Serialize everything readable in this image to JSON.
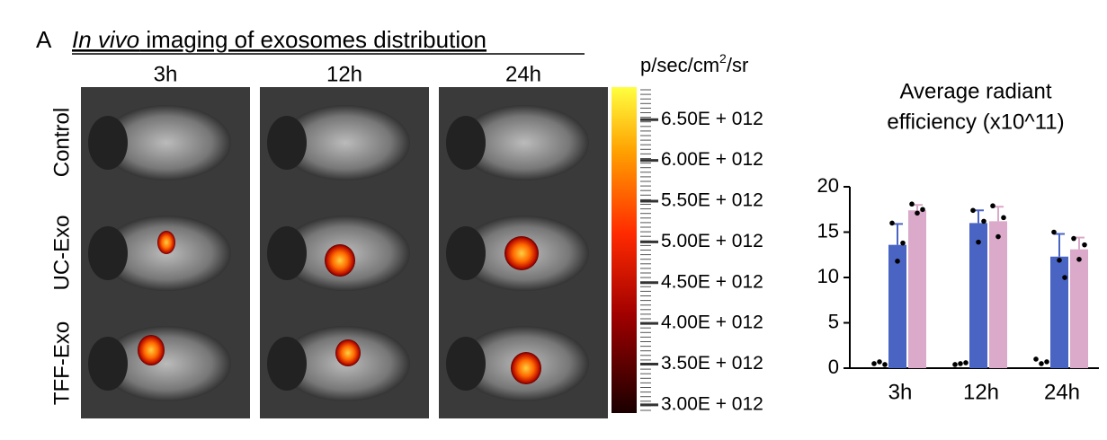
{
  "panel_label": "A",
  "title": {
    "italic": "In vivo",
    "rest": " imaging of exosomes distribution"
  },
  "columns": [
    "3h",
    "12h",
    "24h"
  ],
  "rows": [
    "Control",
    "UC-Exo",
    "TFF-Exo"
  ],
  "colorbar": {
    "unit": "p/sec/cm",
    "unit_sup": "2",
    "unit_tail": "/sr",
    "clim": [
      2900000000000.0,
      6900000000000.0
    ],
    "ticks": [
      {
        "value": 6500000000000.0,
        "label": "6.50E + 012"
      },
      {
        "value": 6000000000000.0,
        "label": "6.00E + 012"
      },
      {
        "value": 5500000000000.0,
        "label": "5.50E + 012"
      },
      {
        "value": 5000000000000.0,
        "label": "5.00E + 012"
      },
      {
        "value": 4500000000000.0,
        "label": "4.50E + 012"
      },
      {
        "value": 4000000000000.0,
        "label": "4.00E + 012"
      },
      {
        "value": 3500000000000.0,
        "label": "3.50E + 012"
      },
      {
        "value": 3000000000000.0,
        "label": "3.00E + 012"
      }
    ]
  },
  "chart_data": {
    "type": "bar",
    "title": [
      "Average radiant",
      "efficiency (x10^11)"
    ],
    "categories": [
      "3h",
      "12h",
      "24h"
    ],
    "series": [
      {
        "color": "#4a64c4",
        "values": [
          0,
          0,
          0
        ],
        "errors": [
          0,
          0,
          0
        ],
        "points": [
          [
            0.3,
            0.5,
            0.2
          ],
          [
            0.2,
            0.3,
            0.4
          ],
          [
            0.8,
            0.3,
            0.5
          ]
        ]
      },
      {
        "color": "#4a64c4",
        "values": [
          13.6,
          16.0,
          12.3
        ],
        "errors": [
          2.3,
          1.4,
          2.5
        ],
        "points": [
          [
            15.8,
            11.6,
            13.6
          ],
          [
            17.2,
            13.7,
            16.0
          ],
          [
            14.8,
            11.7,
            9.8
          ]
        ]
      },
      {
        "color": "#dba9c9",
        "values": [
          17.4,
          16.2,
          13.1
        ],
        "errors": [
          0.6,
          1.6,
          1.3
        ],
        "points": [
          [
            17.9,
            16.9,
            17.3
          ],
          [
            17.7,
            14.3,
            16.4
          ],
          [
            14.1,
            11.8,
            13.4
          ]
        ]
      }
    ],
    "ylim": [
      0,
      20
    ],
    "yticks": [
      0,
      5,
      10,
      15,
      20
    ]
  }
}
